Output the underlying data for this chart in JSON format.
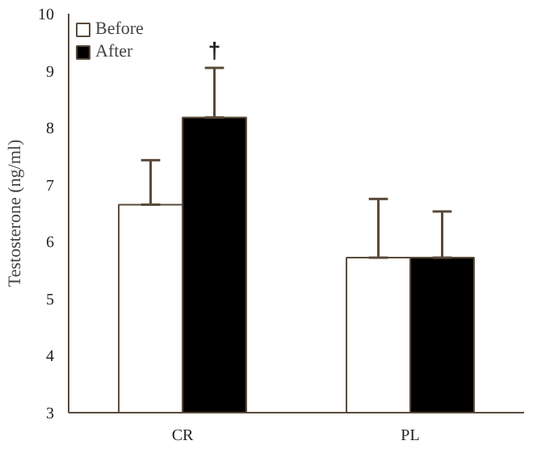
{
  "chart_data": {
    "type": "bar",
    "ylabel": "Testosterone (ng/ml)",
    "categories": [
      "CR",
      "PL"
    ],
    "series": [
      {
        "name": "Before",
        "color": "#ffffff",
        "values": [
          6.65,
          5.72
        ],
        "errors": [
          [
            6.65,
            7.43
          ],
          [
            5.72,
            6.75
          ]
        ]
      },
      {
        "name": "After",
        "color": "#000000",
        "values": [
          8.18,
          5.72
        ],
        "errors": [
          [
            8.18,
            9.05
          ],
          [
            5.72,
            6.53
          ]
        ]
      }
    ],
    "annotations": [
      "†"
    ],
    "ylim": [
      3,
      10
    ],
    "yticks": [
      3,
      4,
      5,
      6,
      7,
      8,
      9,
      10
    ],
    "grid": false,
    "legend": "top left"
  }
}
